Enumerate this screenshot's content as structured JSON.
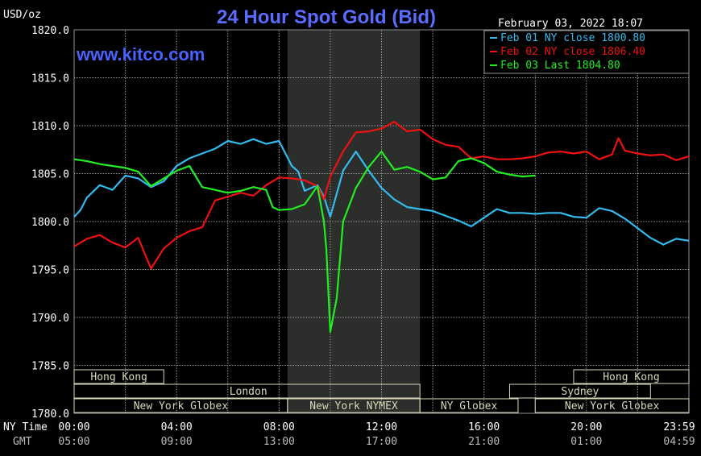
{
  "header": {
    "unit": "USD/oz",
    "title": "24 Hour Spot Gold (Bid)",
    "timestamp": "February 03, 2022 18:07",
    "watermark": "www.kitco.com"
  },
  "colors": {
    "background": "#000000",
    "title": "#5b6cff",
    "watermark": "#4a62ff",
    "grid": "#8f8f8f",
    "nymex_band": "#2b2e2b",
    "session_box": "#d8d8b8",
    "feb01": "#33bbee",
    "feb02": "#ee1111",
    "feb03": "#22ee22"
  },
  "legend": {
    "items": [
      {
        "label": "Feb 01 NY close 1800.80",
        "color": "#33bbee"
      },
      {
        "label": "Feb 02 NY close 1806.40",
        "color": "#ee1111"
      },
      {
        "label": "Feb 03 Last 1804.80",
        "color": "#22ee22"
      }
    ]
  },
  "x_axis": {
    "row1_label": "NY Time",
    "row2_label": "GMT",
    "ny_ticks": [
      "00:00",
      "04:00",
      "08:00",
      "12:00",
      "16:00",
      "20:00",
      "23:59"
    ],
    "gmt_ticks": [
      "05:00",
      "09:00",
      "13:00",
      "17:00",
      "21:00",
      "01:00",
      "04:59"
    ]
  },
  "sessions": {
    "hong_kong_1": "Hong Kong",
    "london": "London",
    "new_york_globex_1": "New York Globex",
    "new_york_nymex": "New York NYMEX",
    "ny_globex": "NY Globex",
    "hong_kong_2": "Hong Kong",
    "sydney": "Sydney",
    "new_york_globex_2": "New York Globex"
  },
  "chart_data": {
    "type": "line",
    "title": "24 Hour Spot Gold (Bid)",
    "ylabel": "USD/oz",
    "xlabel": "NY Time",
    "ylim": [
      1780,
      1820
    ],
    "xlim": [
      0,
      24
    ],
    "y_ticks": [
      1820.0,
      1815.0,
      1810.0,
      1805.0,
      1800.0,
      1795.0,
      1790.0,
      1785.0,
      1780.0
    ],
    "y_tick_labels": [
      "1820.0",
      "1815.0",
      "1810.0",
      "1805.0",
      "1800.0",
      "1795.0",
      "1790.0",
      "1785.0",
      "1780.0"
    ],
    "grid": true,
    "legend_position": "top-right",
    "series": [
      {
        "name": "Feb 01 NY close 1800.80",
        "color": "#33bbee",
        "x": [
          0,
          0.25,
          0.5,
          1,
          1.5,
          2,
          2.5,
          3,
          3.5,
          4,
          4.5,
          5,
          5.5,
          6,
          6.5,
          7,
          7.5,
          8,
          8.5,
          8.75,
          9,
          9.5,
          9.75,
          10,
          10.5,
          11,
          11.5,
          12,
          12.5,
          13,
          13.5,
          14,
          14.5,
          15,
          15.5,
          16,
          16.5,
          17,
          17.5,
          18,
          18.5,
          19,
          19.5,
          20,
          20.5,
          21,
          21.5,
          22,
          22.5,
          23,
          23.5,
          24
        ],
        "y": [
          1800.5,
          1801.2,
          1802.5,
          1803.8,
          1803.3,
          1804.8,
          1804.5,
          1803.6,
          1804.2,
          1805.8,
          1806.6,
          1807.1,
          1807.6,
          1808.4,
          1808.1,
          1808.6,
          1808.1,
          1808.4,
          1805.8,
          1805.2,
          1803.2,
          1803.8,
          1802.6,
          1800.5,
          1805.3,
          1807.3,
          1805.3,
          1803.5,
          1802.3,
          1801.5,
          1801.3,
          1801.1,
          1800.6,
          1800.1,
          1799.5,
          1800.4,
          1801.3,
          1800.9,
          1800.9,
          1800.8,
          1800.9,
          1800.9,
          1800.5,
          1800.4,
          1801.4,
          1801.1,
          1800.3,
          1799.3,
          1798.3,
          1797.6,
          1798.2,
          1798.0
        ]
      },
      {
        "name": "Feb 02 NY close 1806.40",
        "color": "#ee1111",
        "x": [
          0,
          0.5,
          1,
          1.5,
          2,
          2.5,
          3,
          3.5,
          4,
          4.5,
          5,
          5.5,
          6,
          6.5,
          7,
          7.5,
          8,
          8.5,
          9,
          9.5,
          9.75,
          10,
          10.5,
          11,
          11.5,
          12,
          12.5,
          13,
          13.5,
          14,
          14.5,
          15,
          15.5,
          16,
          16.5,
          17,
          17.5,
          18,
          18.5,
          19,
          19.5,
          20,
          20.5,
          21,
          21.25,
          21.5,
          22,
          22.5,
          23,
          23.5,
          24
        ],
        "y": [
          1797.4,
          1798.2,
          1798.6,
          1797.8,
          1797.3,
          1798.3,
          1795.1,
          1797.2,
          1798.3,
          1799.0,
          1799.4,
          1802.2,
          1802.6,
          1803.0,
          1802.7,
          1803.8,
          1804.6,
          1804.5,
          1804.3,
          1803.7,
          1802.3,
          1804.7,
          1807.3,
          1809.3,
          1809.4,
          1809.7,
          1810.4,
          1809.4,
          1809.6,
          1808.6,
          1808.0,
          1807.8,
          1806.6,
          1806.8,
          1806.5,
          1806.5,
          1806.6,
          1806.8,
          1807.2,
          1807.3,
          1807.1,
          1807.3,
          1806.5,
          1807.0,
          1808.7,
          1807.4,
          1807.1,
          1806.9,
          1807.0,
          1806.4,
          1806.8
        ]
      },
      {
        "name": "Feb 03 Last 1804.80",
        "color": "#22ee22",
        "x": [
          0,
          0.5,
          1,
          1.5,
          2,
          2.5,
          3,
          3.5,
          4,
          4.5,
          5,
          5.5,
          6,
          6.5,
          7,
          7.5,
          7.75,
          8,
          8.5,
          9,
          9.5,
          9.75,
          9.85,
          10,
          10.25,
          10.5,
          11,
          11.5,
          12,
          12.5,
          13,
          13.5,
          14,
          14.5,
          15,
          15.5,
          16,
          16.5,
          17,
          17.5,
          18
        ],
        "y": [
          1806.5,
          1806.3,
          1806.0,
          1805.8,
          1805.6,
          1805.2,
          1803.7,
          1804.5,
          1805.3,
          1805.8,
          1803.6,
          1803.3,
          1803.0,
          1803.2,
          1803.6,
          1803.3,
          1801.5,
          1801.2,
          1801.3,
          1801.8,
          1803.7,
          1800.0,
          1797.0,
          1788.5,
          1792.0,
          1800.0,
          1803.5,
          1805.7,
          1807.3,
          1805.4,
          1805.7,
          1805.2,
          1804.4,
          1804.6,
          1806.3,
          1806.6,
          1806.1,
          1805.2,
          1804.9,
          1804.7,
          1804.8
        ]
      }
    ],
    "shaded_region_nymex": [
      8.33,
      13.5
    ]
  }
}
